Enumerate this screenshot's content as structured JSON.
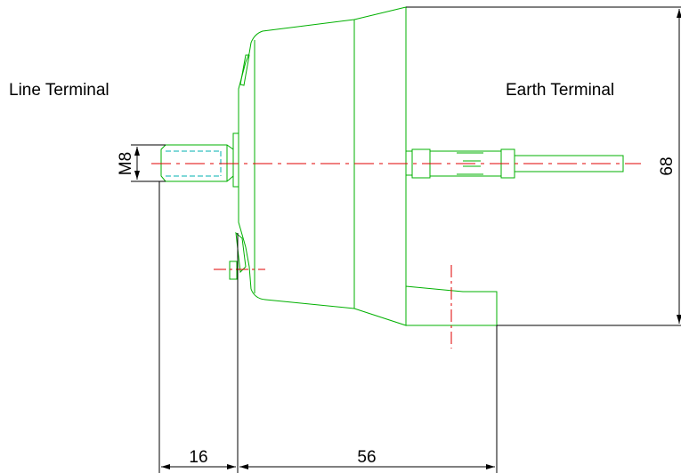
{
  "labels": {
    "line_terminal": "Line Terminal",
    "earth_terminal": "Earth Terminal"
  },
  "dimensions": {
    "thread": "M8",
    "height": "68",
    "left_length": "16",
    "body_length": "56"
  },
  "colors": {
    "outline": "#00b000",
    "thread": "#00b0b0",
    "centerline": "#e00000",
    "dimension": "#000000"
  }
}
